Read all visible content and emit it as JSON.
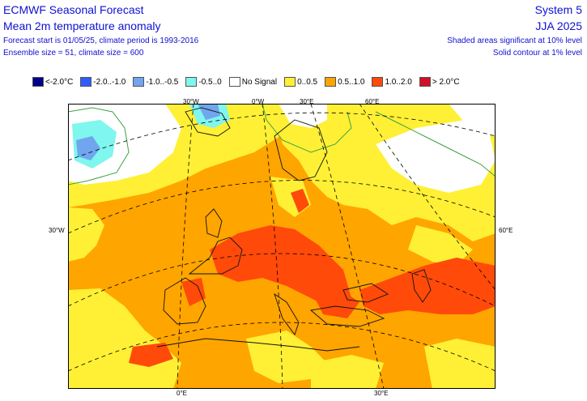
{
  "header": {
    "title": "ECMWF Seasonal Forecast",
    "subtitle": "Mean 2m temperature anomaly",
    "line3": "Forecast start is 01/05/25, climate period is 1993-2016",
    "line4": "Ensemble size = 51, climate size = 600",
    "system": "System 5",
    "season": "JJA 2025",
    "note1": "Shaded areas significant at 10% level",
    "note2": "Solid contour at 1% level"
  },
  "legend": [
    {
      "label": "<-2.0°C",
      "color": "#00008c"
    },
    {
      "label": "-2.0..-1.0",
      "color": "#2f5cff"
    },
    {
      "label": "-1.0..-0.5",
      "color": "#6fa6ee"
    },
    {
      "label": "-0.5..0",
      "color": "#7ff6ee"
    },
    {
      "label": "No Signal",
      "color": "#ffffff"
    },
    {
      "label": "0..0.5",
      "color": "#fff035"
    },
    {
      "label": "0.5..1.0",
      "color": "#ffa500"
    },
    {
      "label": "1.0..2.0",
      "color": "#ff4a0a"
    },
    {
      "label": "> 2.0°C",
      "color": "#d0102a"
    }
  ],
  "coords": {
    "top_30w": "30°W",
    "top_0": "0°W",
    "top_30e": "30°E",
    "top_60e": "60°E",
    "left_30w": "30°W",
    "right_60e": "60°E",
    "bottom_0": "0°E",
    "bottom_30e": "30°E"
  },
  "colors": {
    "yellow": "#fff035",
    "orange": "#ffa500",
    "red": "#ff4a0a",
    "white": "#ffffff",
    "cyan": "#7ff6ee",
    "lightblue": "#6fa6ee",
    "contour": "#3fa23f"
  }
}
